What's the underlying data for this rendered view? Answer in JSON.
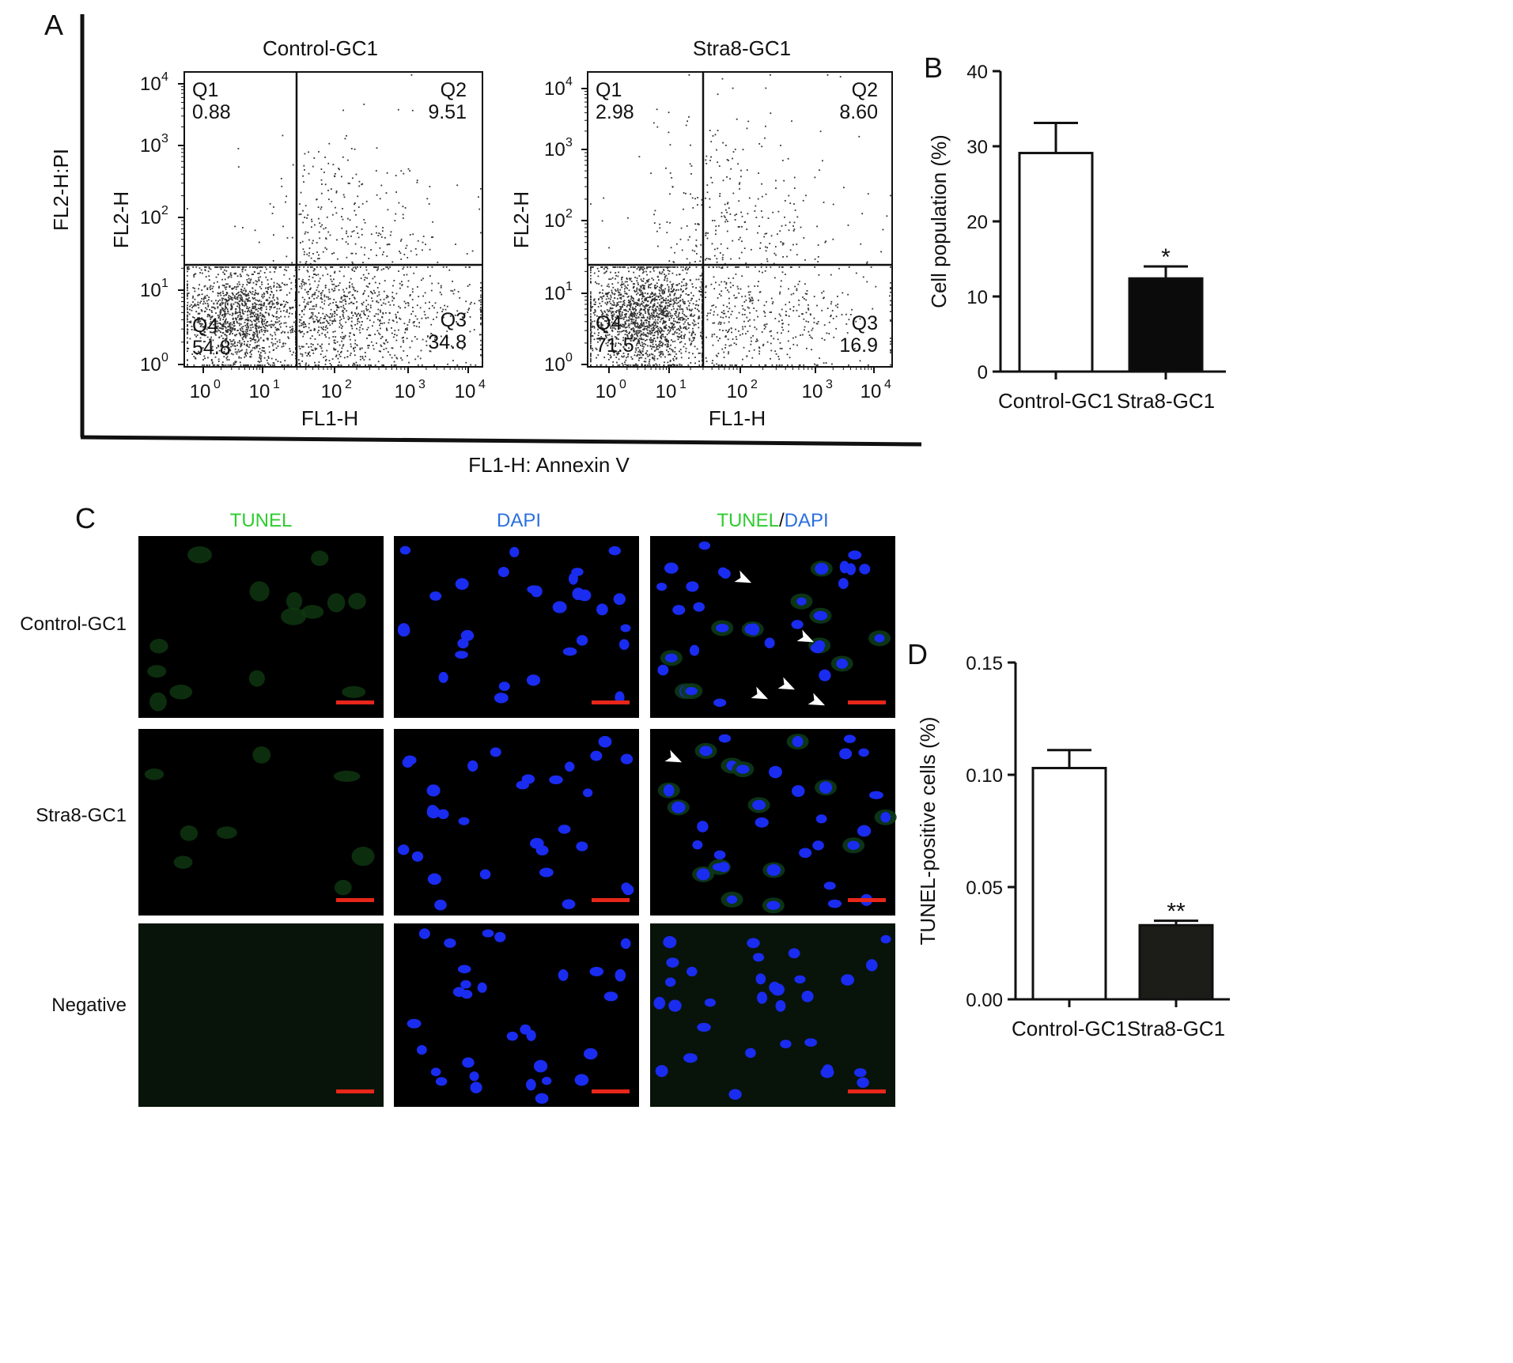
{
  "panels": {
    "A": {
      "label": "A",
      "outer_ylabel": "FL2-H:PI",
      "outer_xlabel": "FL1-H: Annexin V",
      "plots": [
        {
          "title": "Control-GC1",
          "xlabel": "FL1-H",
          "ylabel": "FL2-H",
          "quadrants": [
            {
              "name": "Q1",
              "value": "0.88"
            },
            {
              "name": "Q2",
              "value": "9.51"
            },
            {
              "name": "Q3",
              "value": "34.8"
            },
            {
              "name": "Q4",
              "value": "54.8"
            }
          ]
        },
        {
          "title": "Stra8-GC1",
          "xlabel": "FL1-H",
          "ylabel": "FL2-H",
          "quadrants": [
            {
              "name": "Q1",
              "value": "2.98"
            },
            {
              "name": "Q2",
              "value": "8.60"
            },
            {
              "name": "Q3",
              "value": "16.9"
            },
            {
              "name": "Q4",
              "value": "71.5"
            }
          ]
        }
      ],
      "log_tick_labels": [
        "10",
        "10",
        "10",
        "10",
        "10"
      ],
      "log_tick_exps": [
        "0",
        "1",
        "2",
        "3",
        "4"
      ]
    },
    "B": {
      "label": "B"
    },
    "C": {
      "label": "C",
      "column_titles": [
        {
          "parts": [
            {
              "text": "TUNEL",
              "color": "#2ecc2e"
            }
          ]
        },
        {
          "parts": [
            {
              "text": "DAPI",
              "color": "#2a6fe0"
            }
          ]
        },
        {
          "parts": [
            {
              "text": "TUNEL",
              "color": "#2ecc2e"
            },
            {
              "text": "/",
              "color": "#111111"
            },
            {
              "text": "DAPI",
              "color": "#2a6fe0"
            }
          ]
        }
      ],
      "row_labels": [
        "Control-GC1",
        "Stra8-GC1",
        "Negative"
      ],
      "scale_bar_color": "#e8261a"
    },
    "D": {
      "label": "D"
    }
  },
  "chart_data": [
    {
      "type": "bar",
      "panel": "B",
      "categories": [
        "Control-GC1",
        "Stra8-GC1"
      ],
      "values": [
        29.1,
        12.4
      ],
      "errors": [
        4.0,
        1.6
      ],
      "bar_colors": [
        "#ffffff",
        "#0b0b0b"
      ],
      "significance": [
        "",
        "*"
      ],
      "ylabel": "Cell population (%)",
      "xlabel": "",
      "ylim": [
        0,
        40
      ],
      "yticks": [
        "0",
        "10",
        "20",
        "30",
        "40"
      ]
    },
    {
      "type": "bar",
      "panel": "D",
      "categories": [
        "Control-GC1",
        "Stra8-GC1"
      ],
      "values": [
        0.103,
        0.033
      ],
      "errors": [
        0.008,
        0.002
      ],
      "bar_colors": [
        "#ffffff",
        "#1c1c18"
      ],
      "significance": [
        "",
        "**"
      ],
      "ylabel": "TUNEL-positive cells (%)",
      "xlabel": "",
      "ylim": [
        0,
        0.15
      ],
      "yticks": [
        "0.00",
        "0.05",
        "0.10",
        "0.15"
      ]
    }
  ]
}
